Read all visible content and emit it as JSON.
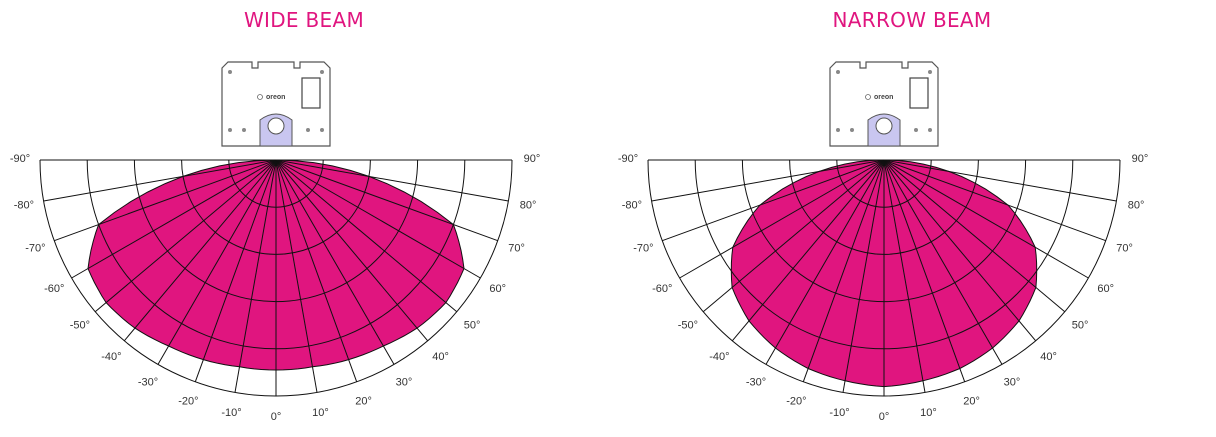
{
  "diagrams": [
    {
      "title": "WIDE BEAM",
      "beam": "wide",
      "device_label": "oreon",
      "angle_labels": [
        "-90°",
        "-80°",
        "-70°",
        "-60°",
        "-50°",
        "-40°",
        "-30°",
        "-20°",
        "-10°",
        "0°",
        "10°",
        "20°",
        "30°",
        "40°",
        "50°",
        "60°",
        "70°",
        "80°",
        "90°"
      ]
    },
    {
      "title": "NARROW BEAM",
      "beam": "narrow",
      "device_label": "oreon",
      "angle_labels": [
        "-90°",
        "-80°",
        "-70°",
        "-60°",
        "-50°",
        "-40°",
        "-30°",
        "-20°",
        "-10°",
        "0°",
        "10°",
        "20°",
        "30°",
        "40°",
        "50°",
        "60°",
        "70°",
        "80°",
        "90°"
      ]
    }
  ],
  "colors": {
    "beam_fill": "#e0157f",
    "title": "#e0157f",
    "grid": "#111111",
    "accent": "#c9c6f0"
  }
}
